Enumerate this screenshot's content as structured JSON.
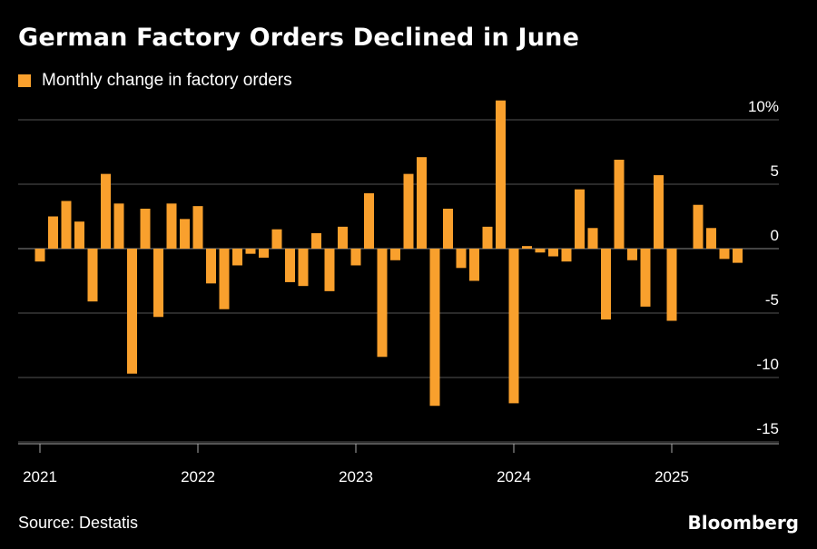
{
  "title": "German Factory Orders Declined in June",
  "source": "Source: Destatis",
  "brand": "Bloomberg",
  "colors": {
    "bar": "#F9A02D",
    "grid": "#555555",
    "background": "#000000",
    "text": "#ffffff"
  },
  "chart_data": {
    "type": "bar",
    "series": [
      {
        "name": "Monthly change in factory orders"
      }
    ],
    "y_tick_labels": [
      "10%",
      "5",
      "0",
      "-5",
      "-10",
      "-15"
    ],
    "y_ticks": [
      10,
      5,
      0,
      -5,
      -10,
      -15
    ],
    "ylim": [
      -15.5,
      11
    ],
    "x_tick_labels": [
      "2021",
      "2022",
      "2023",
      "2024",
      "2025"
    ],
    "x_tick_months": [
      "2021-01",
      "2022-01",
      "2023-01",
      "2024-01",
      "2025-01"
    ],
    "months": [
      "2021-01",
      "2021-02",
      "2021-03",
      "2021-04",
      "2021-05",
      "2021-06",
      "2021-07",
      "2021-08",
      "2021-09",
      "2021-10",
      "2021-11",
      "2021-12",
      "2022-01",
      "2022-02",
      "2022-03",
      "2022-04",
      "2022-05",
      "2022-06",
      "2022-07",
      "2022-08",
      "2022-09",
      "2022-10",
      "2022-11",
      "2022-12",
      "2023-01",
      "2023-02",
      "2023-03",
      "2023-04",
      "2023-05",
      "2023-06",
      "2023-07",
      "2023-08",
      "2023-09",
      "2023-10",
      "2023-11",
      "2023-12",
      "2024-01",
      "2024-02",
      "2024-03",
      "2024-04",
      "2024-05",
      "2024-06",
      "2024-07",
      "2024-08",
      "2024-09",
      "2024-10",
      "2024-11",
      "2024-12",
      "2025-01",
      "2025-02",
      "2025-03",
      "2025-04",
      "2025-05",
      "2025-06"
    ],
    "values": [
      -1.0,
      2.5,
      3.7,
      2.1,
      -4.1,
      5.8,
      3.5,
      -9.7,
      3.1,
      -5.3,
      3.5,
      2.3,
      3.3,
      -2.7,
      -4.7,
      -1.3,
      -0.4,
      -0.7,
      1.5,
      -2.6,
      -2.9,
      1.2,
      -3.3,
      1.7,
      -1.3,
      4.3,
      -8.4,
      -0.9,
      5.8,
      7.1,
      -12.2,
      3.1,
      -1.5,
      -2.5,
      1.7,
      11.5,
      -12.0,
      0.2,
      -0.3,
      -0.6,
      -1.0,
      4.6,
      1.6,
      -5.5,
      6.9,
      -0.9,
      -4.5,
      5.7,
      -5.6,
      0.0,
      3.4,
      1.6,
      -0.8,
      -1.1
    ]
  }
}
